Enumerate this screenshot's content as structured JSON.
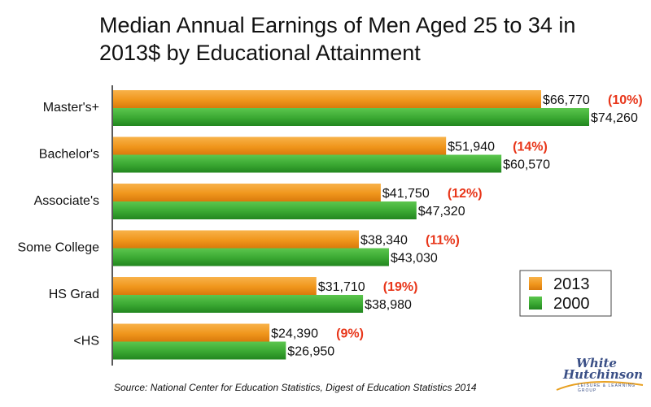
{
  "chart_data": {
    "type": "bar",
    "orientation": "horizontal",
    "title": "Median Annual Earnings of Men Aged 25 to 34 in 2013$ by Educational Attainment",
    "categories": [
      "Master's+",
      "Bachelor's",
      "Associate's",
      "Some College",
      "HS Grad",
      "<HS"
    ],
    "series": [
      {
        "name": "2013",
        "color": "#f0961c",
        "values": [
          66770,
          51940,
          41750,
          38340,
          31710,
          24390
        ],
        "labels": [
          "$66,770",
          "$51,940",
          "$41,750",
          "$38,340",
          "$31,710",
          "$24,390"
        ]
      },
      {
        "name": "2000",
        "color": "#3aa832",
        "values": [
          74260,
          60570,
          47320,
          43030,
          38980,
          26950
        ],
        "labels": [
          "$74,260",
          "$60,570",
          "$47,320",
          "$43,030",
          "$38,980",
          "$26,950"
        ]
      }
    ],
    "annotations": [
      "(10%)",
      "(14%)",
      "(12%)",
      "(11%)",
      "(19%)",
      "(9%)"
    ],
    "annotation_color": "#e8361a",
    "xlim": [
      0,
      80000
    ],
    "grid": false,
    "legend_position": "bottom-right"
  },
  "source": "Source: National Center for Education Statistics, Digest of Education Statistics 2014",
  "logo": {
    "line1": "White",
    "line2": "Hutchinson",
    "tagline": "Leisure & Learning Group"
  }
}
